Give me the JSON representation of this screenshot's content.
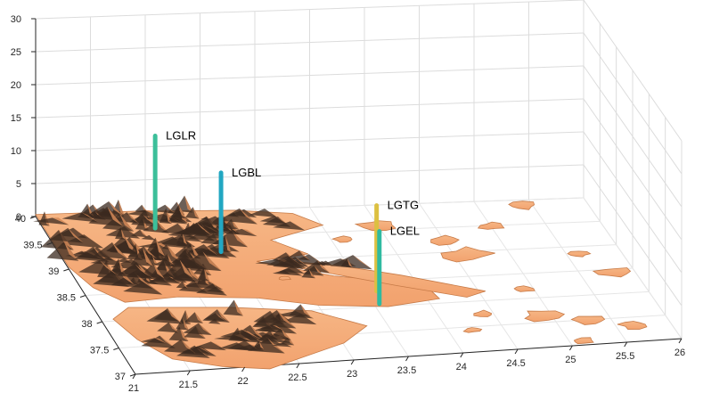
{
  "chart_data": {
    "type": "3d-surface-with-stems",
    "title": "",
    "xlabel": "",
    "ylabel": "",
    "zlabel": "",
    "x_ticks": [
      "21",
      "21.5",
      "22",
      "22.5",
      "23",
      "23.5",
      "24",
      "24.5",
      "25",
      "25.5",
      "26"
    ],
    "y_ticks": [
      "37",
      "37.5",
      "38",
      "38.5",
      "39",
      "39.5",
      "40"
    ],
    "z_ticks": [
      "0",
      "5",
      "10",
      "15",
      "20",
      "25",
      "30"
    ],
    "xlim": [
      21,
      26
    ],
    "ylim": [
      37,
      40
    ],
    "zlim": [
      0,
      30
    ],
    "grid": true,
    "surface_color": "#f2a26e",
    "shadow_color": "#3b2a1f",
    "stations": [
      {
        "name": "LGLR",
        "lon": 22.0,
        "lat": 39.7,
        "z": 14,
        "color": "#3cbf9a"
      },
      {
        "name": "LGBL",
        "lon": 22.45,
        "lat": 39.2,
        "z": 12,
        "color": "#22a7c2"
      },
      {
        "name": "LGTG",
        "lon": 23.6,
        "lat": 38.3,
        "z": 13,
        "color": "#dcc041"
      },
      {
        "name": "LGEL",
        "lon": 23.55,
        "lat": 38.05,
        "z": 11,
        "color": "#2fbaa0"
      }
    ]
  }
}
